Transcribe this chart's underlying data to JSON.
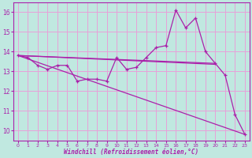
{
  "x": [
    0,
    1,
    2,
    3,
    4,
    5,
    6,
    7,
    8,
    9,
    10,
    11,
    12,
    13,
    14,
    15,
    16,
    17,
    18,
    19,
    20,
    21,
    22,
    23
  ],
  "line_main": [
    13.8,
    13.7,
    13.3,
    13.1,
    13.3,
    13.3,
    12.5,
    12.6,
    12.6,
    12.5,
    13.7,
    13.1,
    13.2,
    13.7,
    14.2,
    14.3,
    16.1,
    15.2,
    15.7,
    14.0,
    13.4,
    12.8,
    10.8,
    9.8
  ],
  "trend1_x": [
    0,
    20
  ],
  "trend1_y": [
    13.8,
    13.4
  ],
  "trend2_x": [
    0,
    20
  ],
  "trend2_y": [
    13.8,
    13.35
  ],
  "trend3_x": [
    0,
    23
  ],
  "trend3_y": [
    13.8,
    9.8
  ],
  "line_color": "#aa22aa",
  "bg_color": "#c0e8e0",
  "grid_color": "#e8a0d8",
  "ylabel_vals": [
    10,
    11,
    12,
    13,
    14,
    15,
    16
  ],
  "xlabel_vals": [
    0,
    1,
    2,
    3,
    4,
    5,
    6,
    7,
    8,
    9,
    10,
    11,
    12,
    13,
    14,
    15,
    16,
    17,
    18,
    19,
    20,
    21,
    22,
    23
  ],
  "xlabel": "Windchill (Refroidissement éolien,°C)",
  "ylim": [
    9.5,
    16.5
  ],
  "xlim": [
    -0.5,
    23.5
  ]
}
